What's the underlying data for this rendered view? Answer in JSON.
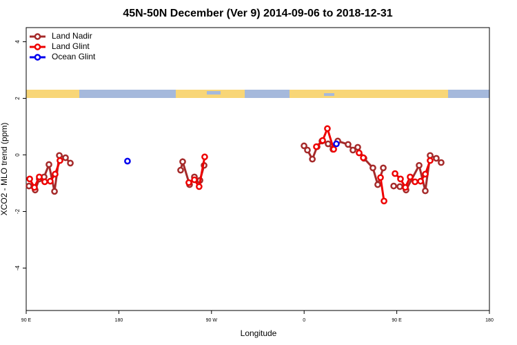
{
  "chart_data": {
    "type": "line",
    "title": "45N-50N December (Ver 9)   2014-09-06 to 2018-12-31",
    "x_label": "Longitude",
    "y_label": "XCO2 - MLO trend (ppm)",
    "xlim": [
      90,
      540
    ],
    "ylim": [
      -5.5,
      4.5
    ],
    "xticks": [
      {
        "value": 90,
        "label": "90 E"
      },
      {
        "value": 180,
        "label": "180"
      },
      {
        "value": 270,
        "label": "90 W"
      },
      {
        "value": 360,
        "label": "0"
      },
      {
        "value": 450,
        "label": "90 E"
      },
      {
        "value": 540,
        "label": "180"
      }
    ],
    "yticks": [
      -4,
      -2,
      0,
      2,
      4
    ],
    "legend": "topleft",
    "series": [
      {
        "name": "Land Nadir",
        "color": "#a52a2a",
        "x": [
          92.7,
          98.7,
          102.7,
          107.4,
          112.1,
          117.5,
          122.2,
          128.2,
          132.9,
          null,
          240,
          242,
          248.7,
          253.4,
          258.8,
          262.8,
          null,
          359.9,
          363.2,
          368,
          372.6,
          377.3,
          383.3,
          388,
          392.7,
          402.7,
          407.4,
          412.1,
          418.1,
          426.8,
          431.5,
          436.9,
          null,
          447,
          453,
          459,
          471.7,
          477.7,
          482.4,
          488.4,
          493.1
        ],
        "values": [
          -1.1,
          -1.24,
          -0.85,
          -0.78,
          -0.34,
          -1.29,
          -0.02,
          -0.1,
          -0.29,
          null,
          -0.54,
          -0.24,
          -1.05,
          -0.78,
          -0.9,
          -0.37,
          null,
          0.32,
          0.17,
          -0.15,
          0.29,
          0.49,
          0.39,
          0.2,
          0.49,
          0.37,
          0.17,
          0.27,
          -0.12,
          -0.46,
          -1.05,
          -0.46,
          null,
          -1.1,
          -1.12,
          -1.24,
          -0.37,
          -1.27,
          -0.02,
          -0.12,
          -0.27
        ]
      },
      {
        "name": "Land Glint",
        "color": "#ee0000",
        "x": [
          93.4,
          98,
          102.7,
          108,
          113.4,
          118.1,
          122.8,
          null,
          248,
          253.4,
          258,
          263.4,
          null,
          371.9,
          378,
          382.6,
          388.7,
          null,
          413.4,
          417.5,
          null,
          434.2,
          437.6,
          null,
          448.3,
          453.6,
          458.3,
          463,
          467.7,
          473.1,
          477.7,
          482.4
        ],
        "values": [
          -0.85,
          -1.15,
          -0.78,
          -0.95,
          -0.93,
          -0.68,
          -0.2,
          null,
          -0.98,
          -0.88,
          -1.12,
          -0.07,
          null,
          0.29,
          0.51,
          0.93,
          0.2,
          null,
          0.07,
          -0.1,
          null,
          -0.8,
          -1.63,
          null,
          -0.66,
          -0.85,
          -1.15,
          -0.78,
          -0.95,
          -0.93,
          -0.68,
          -0.2
        ]
      },
      {
        "name": "Ocean Glint",
        "color": "#0000ee",
        "x": [
          188.4,
          null,
          391.3
        ],
        "values": [
          -0.22,
          null,
          0.39
        ]
      }
    ]
  }
}
